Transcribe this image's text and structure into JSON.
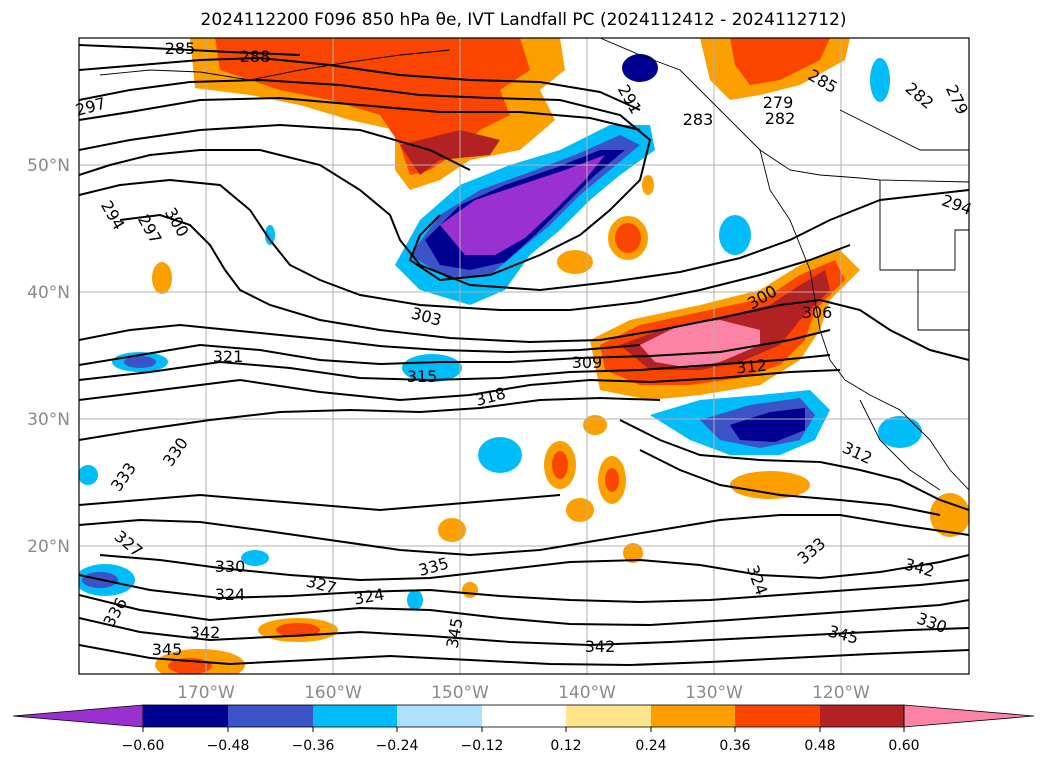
{
  "title": "2024112200 F096 850 hPa θe, IVT Landfall PC (2024112412 - 2024112712)",
  "map": {
    "lat_labels": [
      "50°N",
      "40°N",
      "30°N",
      "20°N"
    ],
    "lon_labels": [
      "170°W",
      "160°W",
      "150°W",
      "140°W",
      "130°W",
      "120°W"
    ],
    "contour_labels": [
      "285",
      "288",
      "297",
      "294",
      "297",
      "300",
      "291",
      "283",
      "279",
      "282",
      "285",
      "282",
      "279",
      "294",
      "303",
      "300",
      "306",
      "321",
      "315",
      "309",
      "318",
      "312",
      "330",
      "333",
      "312",
      "327",
      "330",
      "324",
      "327",
      "324",
      "335",
      "324",
      "333",
      "342",
      "336",
      "342",
      "330",
      "345",
      "345",
      "342",
      "345"
    ]
  },
  "colorbar": {
    "colors": [
      "#9b30d0",
      "#000090",
      "#3a54c8",
      "#00bcf8",
      "#b0e0ff",
      "#ffffff",
      "#ffffff",
      "#fce58a",
      "#fca000",
      "#fa4500",
      "#b22222",
      "#fc83a6"
    ],
    "extend_low_color": "#9b30d0",
    "extend_high_color": "#fc83a6",
    "tick_labels": [
      "−0.60",
      "−0.48",
      "−0.36",
      "−0.24",
      "−0.12",
      "0.12",
      "0.24",
      "0.36",
      "0.48",
      "0.60"
    ]
  }
}
